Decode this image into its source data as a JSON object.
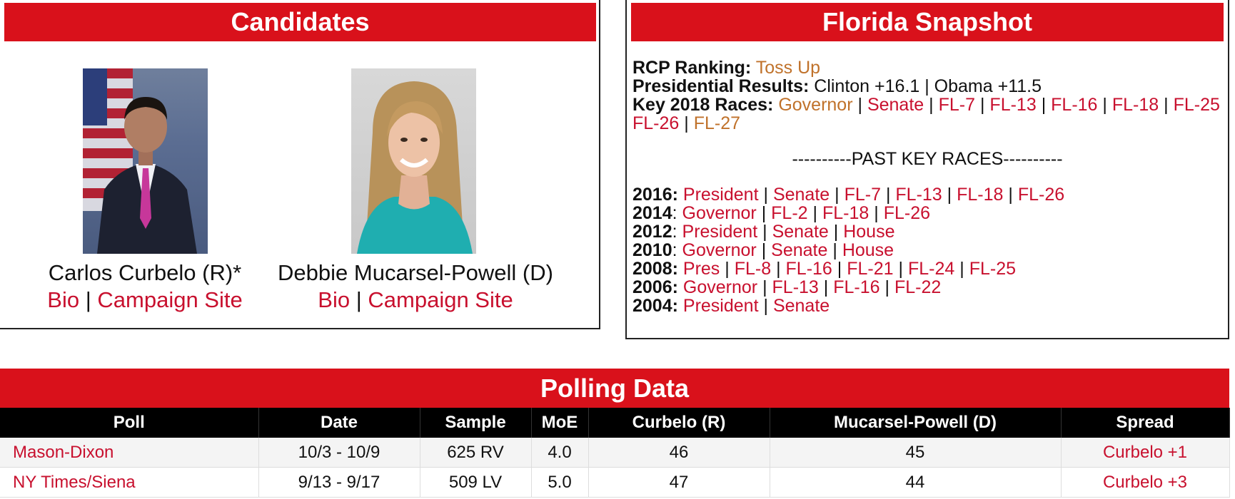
{
  "candidates": {
    "title": "Candidates",
    "people": [
      {
        "name": "Carlos Curbelo (R)*",
        "bio": "Bio",
        "site": "Campaign Site"
      },
      {
        "name": "Debbie Mucarsel-Powell (D)",
        "bio": "Bio",
        "site": "Campaign Site"
      }
    ],
    "sep": "|"
  },
  "snapshot": {
    "title": "Florida Snapshot",
    "ranking_label": "RCP Ranking:",
    "ranking_value": "Toss Up",
    "pres_label": "Presidential Results:",
    "pres_value": "Clinton +16.1 | Obama +11.5",
    "key_label": "Key 2018 Races:",
    "key_races": [
      "Governor",
      "Senate",
      "FL-7",
      "FL-13",
      "FL-16",
      "FL-18",
      "FL-25",
      "FL-26",
      "FL-27"
    ],
    "past_title": "----------PAST KEY RACES----------",
    "past": [
      {
        "year": "2016:",
        "races": [
          "President",
          "Senate",
          "FL-7",
          "FL-13",
          "FL-18",
          "FL-26"
        ]
      },
      {
        "year": "2014",
        "races": [
          "Governor",
          "FL-2",
          "FL-18",
          "FL-26"
        ]
      },
      {
        "year": "2012",
        "races": [
          "President",
          "Senate",
          "House"
        ]
      },
      {
        "year": "2010",
        "races": [
          "Governor",
          "Senate",
          "House"
        ]
      },
      {
        "year": "2008:",
        "races": [
          "Pres",
          "FL-8",
          "FL-16",
          "FL-21",
          "FL-24",
          "FL-25"
        ]
      },
      {
        "year": "2006:",
        "races": [
          "Governor",
          "FL-13",
          "FL-16",
          "FL-22"
        ]
      },
      {
        "year": "2004:",
        "races": [
          "President",
          "Senate"
        ]
      }
    ]
  },
  "polling": {
    "title": "Polling Data",
    "headers": [
      "Poll",
      "Date",
      "Sample",
      "MoE",
      "Curbelo (R)",
      "Mucarsel-Powell (D)",
      "Spread"
    ],
    "rows": [
      {
        "poll": "Mason-Dixon",
        "date": "10/3 - 10/9",
        "sample": "625 RV",
        "moe": "4.0",
        "r": "46",
        "d": "45",
        "spread": "Curbelo +1"
      },
      {
        "poll": "NY Times/Siena",
        "date": "9/13 - 9/17",
        "sample": "509 LV",
        "moe": "5.0",
        "r": "47",
        "d": "44",
        "spread": "Curbelo +3"
      }
    ]
  },
  "colors": {
    "accent_red": "#d9111b",
    "link_red": "#c8102e",
    "link_orange": "#c0722b"
  }
}
